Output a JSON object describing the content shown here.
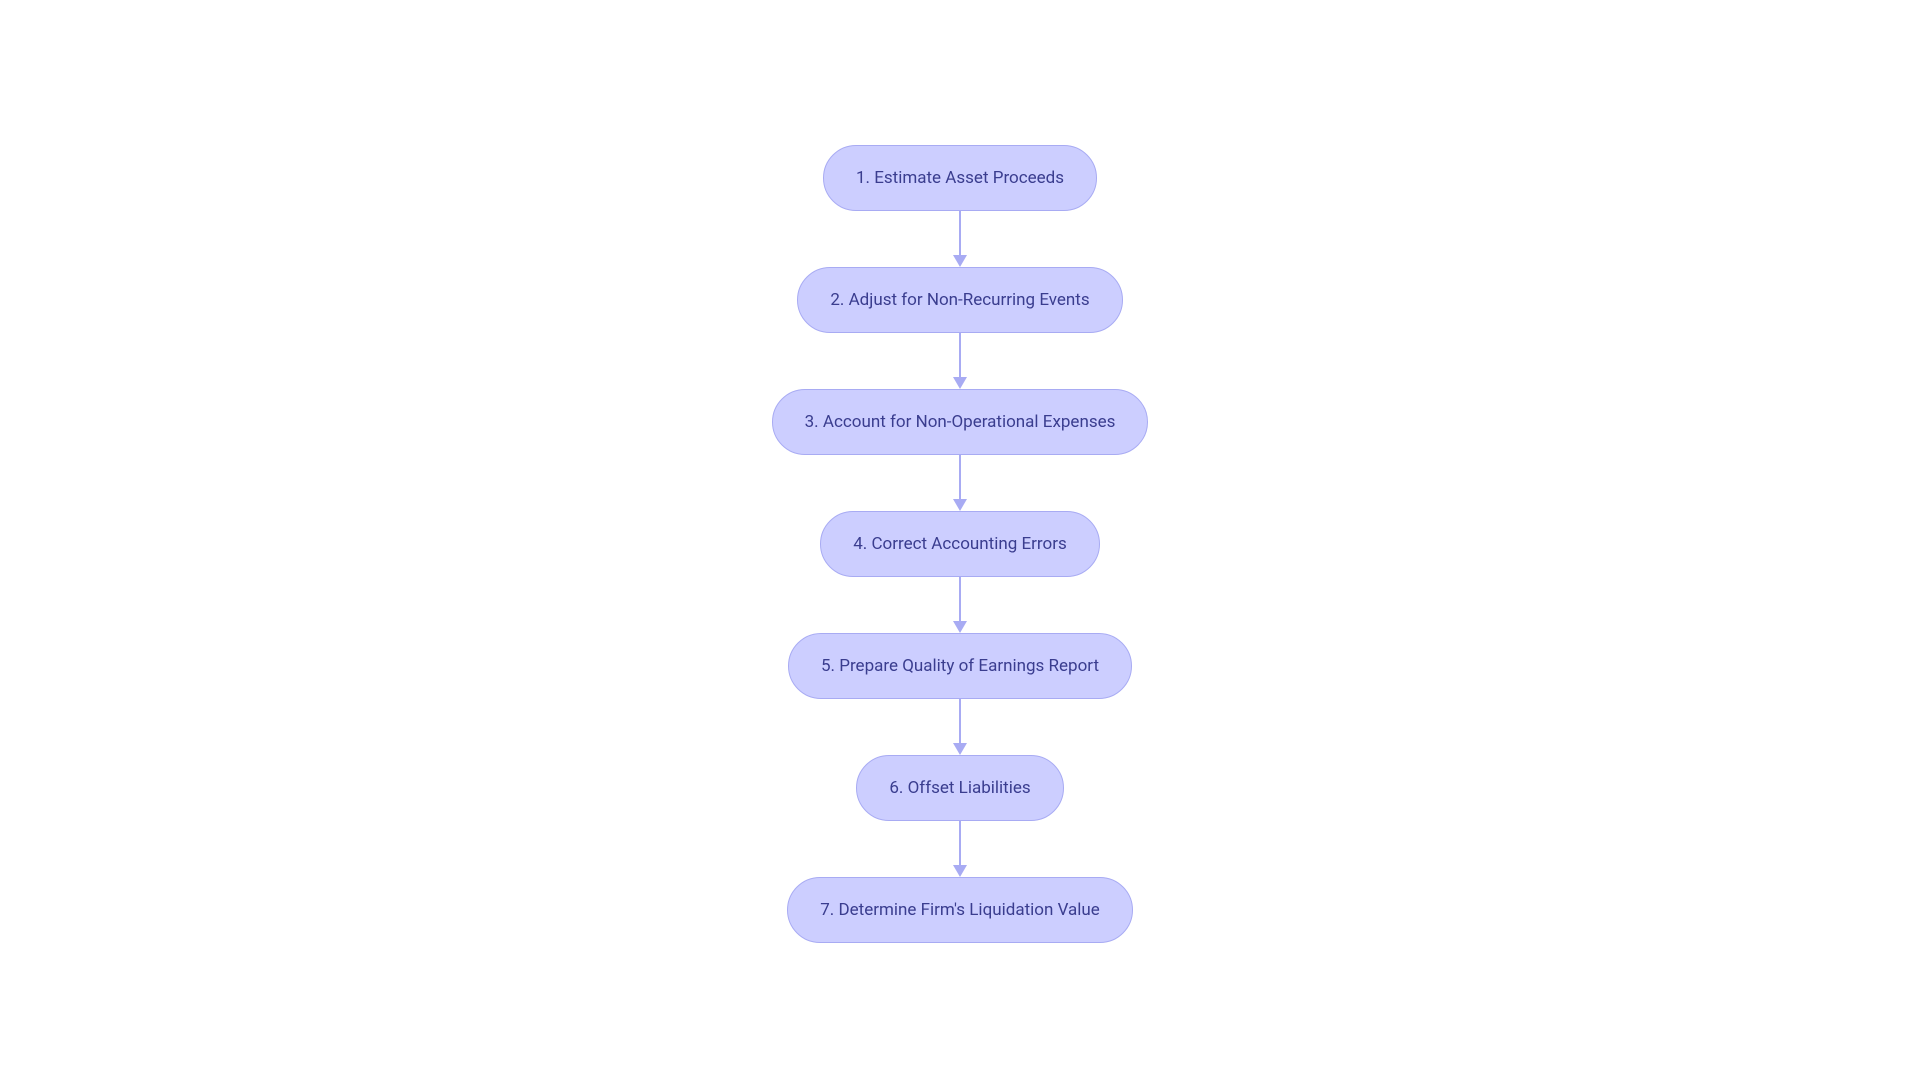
{
  "flowchart": {
    "type": "flowchart",
    "direction": "vertical",
    "background_color": "#ffffff",
    "node_style": {
      "fill_color": "#ccceff",
      "border_color": "#a8abf3",
      "border_width": 1.5,
      "text_color": "#3a3d8f",
      "border_radius": 999,
      "height": 66,
      "font_size": 17,
      "padding_x": 32
    },
    "edge_style": {
      "line_color": "#a8abf3",
      "line_width": 2,
      "arrow_color": "#a8abf3",
      "arrow_size": 12,
      "gap_height": 56
    },
    "nodes": [
      {
        "id": "n1",
        "label": "1. Estimate Asset Proceeds"
      },
      {
        "id": "n2",
        "label": "2. Adjust for Non-Recurring Events"
      },
      {
        "id": "n3",
        "label": "3. Account for Non-Operational Expenses"
      },
      {
        "id": "n4",
        "label": "4. Correct Accounting Errors"
      },
      {
        "id": "n5",
        "label": "5. Prepare Quality of Earnings Report"
      },
      {
        "id": "n6",
        "label": "6. Offset Liabilities"
      },
      {
        "id": "n7",
        "label": "7. Determine Firm's Liquidation Value"
      }
    ],
    "edges": [
      {
        "from": "n1",
        "to": "n2"
      },
      {
        "from": "n2",
        "to": "n3"
      },
      {
        "from": "n3",
        "to": "n4"
      },
      {
        "from": "n4",
        "to": "n5"
      },
      {
        "from": "n5",
        "to": "n6"
      },
      {
        "from": "n6",
        "to": "n7"
      }
    ]
  }
}
